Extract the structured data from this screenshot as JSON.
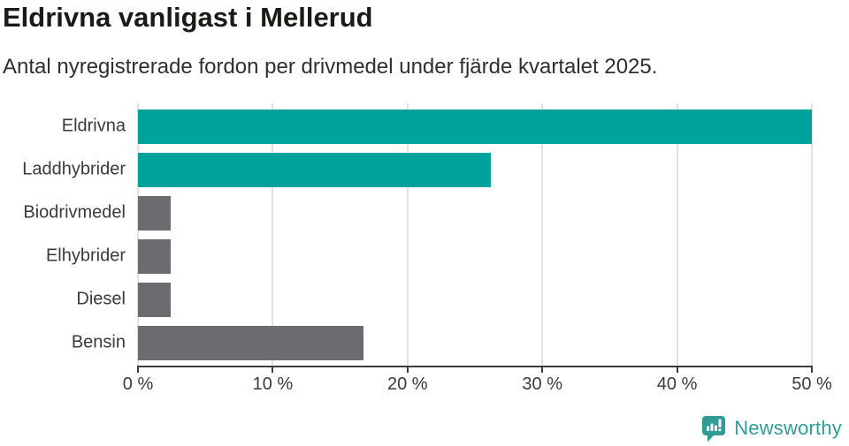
{
  "chart": {
    "title": "Eldrivna vanligast i Mellerud",
    "subtitle": "Antal nyregistrerade fordon per drivmedel under fjärde kvartalet 2025."
  },
  "chart_data": {
    "type": "bar",
    "orientation": "horizontal",
    "title": "Eldrivna vanligast i Mellerud",
    "subtitle": "Antal nyregistrerade fordon per drivmedel under fjärde kvartalet 2025.",
    "categories": [
      "Eldrivna",
      "Laddhybrider",
      "Biodrivmedel",
      "Elhybrider",
      "Diesel",
      "Bensin"
    ],
    "values": [
      50.0,
      26.2,
      2.4,
      2.4,
      2.4,
      16.7
    ],
    "value_unit": "%",
    "xlabel": "",
    "ylabel": "",
    "xlim": [
      0,
      50
    ],
    "x_ticks": [
      {
        "value": 0,
        "label": "0 %"
      },
      {
        "value": 10,
        "label": "10 %"
      },
      {
        "value": 20,
        "label": "20 %"
      },
      {
        "value": 30,
        "label": "30 %"
      },
      {
        "value": 40,
        "label": "40 %"
      },
      {
        "value": 50,
        "label": "50 %"
      }
    ],
    "bar_colors": [
      "#00a39b",
      "#00a39b",
      "#6d6a70",
      "#6d6a70",
      "#6d6a70",
      "#6d6a70"
    ],
    "grid": "vertical gridlines on",
    "legend": "none"
  },
  "colors": {
    "highlight_bar": "#00a39b",
    "muted_bar": "#6d6a70",
    "gridline": "#e2e2e2",
    "axis": "#3d3d3d",
    "title_text": "#1a1a16",
    "subtitle_text": "#2f2f2c",
    "logo_teal": "#2f9c95"
  },
  "logo": {
    "text": "Newsworthy",
    "icon": "newsworthy-speech-bubble-bar-chart-icon"
  }
}
